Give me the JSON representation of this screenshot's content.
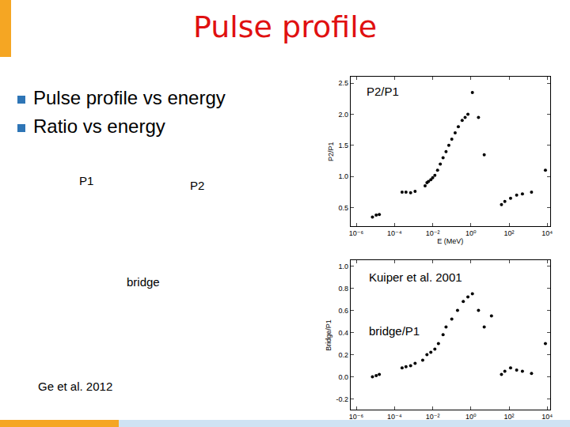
{
  "slide": {
    "title": "Pulse profile",
    "bullets": [
      "Pulse profile vs energy",
      "Ratio vs energy"
    ],
    "labels": {
      "p1": "P1",
      "p2": "P2",
      "bridge": "bridge",
      "source": "Ge et al. 2012"
    }
  },
  "chart_data": [
    {
      "type": "scatter",
      "title": "P2/P1",
      "xlabel": "E (MeV)",
      "ylabel": "P2/P1",
      "log": "x",
      "grid": false,
      "marker": "circle",
      "color": "#000000",
      "x": [
        7e-06,
        1.1e-05,
        1.6e-05,
        0.00025,
        0.0004,
        0.0007,
        0.0012,
        0.004,
        0.005,
        0.006,
        0.008,
        0.01,
        0.013,
        0.018,
        0.025,
        0.035,
        0.05,
        0.07,
        0.1,
        0.15,
        0.22,
        0.35,
        0.5,
        0.7,
        1.2,
        2.5,
        5,
        40,
        60,
        120,
        250,
        500,
        1500,
        8000
      ],
      "values": [
        0.35,
        0.38,
        0.39,
        0.75,
        0.75,
        0.74,
        0.76,
        0.85,
        0.9,
        0.92,
        0.95,
        0.98,
        1.02,
        1.1,
        1.2,
        1.3,
        1.4,
        1.5,
        1.6,
        1.7,
        1.8,
        1.9,
        1.95,
        2.0,
        2.35,
        1.95,
        1.35,
        0.55,
        0.6,
        0.65,
        0.7,
        0.72,
        0.75,
        1.1
      ],
      "xlim": [
        5e-07,
        14000.0
      ],
      "xticks": [
        {
          "value": 1e-06,
          "label": "10⁻⁶"
        },
        {
          "value": 0.0001,
          "label": "10⁻⁴"
        },
        {
          "value": 0.01,
          "label": "10⁻²"
        },
        {
          "value": 1,
          "label": "10⁰"
        },
        {
          "value": 100,
          "label": "10²"
        },
        {
          "value": 10000,
          "label": "10⁴"
        }
      ],
      "ylim": [
        0.2,
        2.6
      ],
      "yticks": [
        0.5,
        {
          "value": 1,
          "label": "1.0"
        },
        1.5,
        {
          "value": 2,
          "label": "2.0"
        },
        2.5
      ]
    },
    {
      "type": "scatter",
      "title": "bridge/P1",
      "xlabel": "E (MeV)",
      "ylabel": "Bridge/P1",
      "annotation": "Kuiper et al. 2001",
      "log": "x",
      "grid": false,
      "marker": "circle",
      "color": "#000000",
      "x": [
        7e-06,
        1.1e-05,
        1.6e-05,
        0.00025,
        0.0004,
        0.0007,
        0.0012,
        0.003,
        0.005,
        0.008,
        0.013,
        0.02,
        0.035,
        0.05,
        0.1,
        0.2,
        0.4,
        0.7,
        1.2,
        2.5,
        5,
        12,
        40,
        60,
        120,
        250,
        500,
        1500,
        8000
      ],
      "values": [
        0.0,
        0.01,
        0.02,
        0.08,
        0.09,
        0.1,
        0.12,
        0.15,
        0.2,
        0.22,
        0.25,
        0.3,
        0.38,
        0.45,
        0.52,
        0.6,
        0.68,
        0.72,
        0.75,
        0.6,
        0.45,
        0.55,
        0.02,
        0.05,
        0.08,
        0.06,
        0.05,
        0.03,
        0.3
      ],
      "xlim": [
        5e-07,
        14000.0
      ],
      "xticks": [
        {
          "value": 1e-06,
          "label": "10⁻⁶"
        },
        {
          "value": 0.0001,
          "label": "10⁻⁴"
        },
        {
          "value": 0.01,
          "label": "10⁻²"
        },
        {
          "value": 1,
          "label": "10⁰"
        },
        {
          "value": 100,
          "label": "10²"
        },
        {
          "value": 10000,
          "label": "10⁴"
        }
      ],
      "ylim": [
        -0.3,
        1.05
      ],
      "yticks": [
        -0.2,
        {
          "value": 0,
          "label": "0.0"
        },
        0.2,
        0.4,
        0.6,
        0.8,
        {
          "value": 1,
          "label": "1.0"
        }
      ]
    }
  ]
}
